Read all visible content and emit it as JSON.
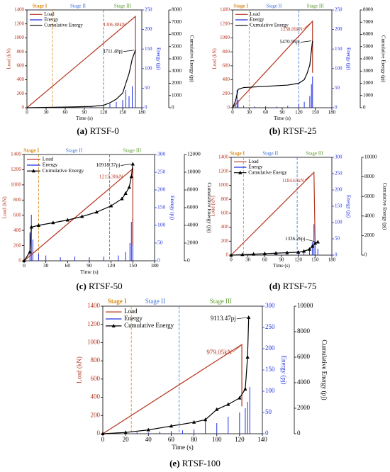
{
  "chart_data": [
    {
      "type": "line",
      "label": "(a)",
      "title": "RTSF-0",
      "xlabel": "Time (s)",
      "ylabel": "Load (kN)",
      "y2label": "Energy (pj)",
      "y3label": "Cumulative Energy (pj)",
      "xlim": [
        0,
        180
      ],
      "xticks": [
        0,
        30,
        60,
        90,
        120,
        150,
        180
      ],
      "ylim": [
        0,
        1400
      ],
      "yticks": [
        0,
        200,
        400,
        600,
        800,
        1000,
        1200,
        1400
      ],
      "y2lim": [
        0,
        250
      ],
      "y2ticks": [
        0,
        50,
        100,
        150,
        200,
        250
      ],
      "y3lim": [
        0,
        8000
      ],
      "y3ticks": [
        0,
        1000,
        2000,
        3000,
        4000,
        5000,
        6000,
        7000,
        8000
      ],
      "stages": [
        "Stage I",
        "Stage II",
        "Stage III"
      ],
      "stage_bounds": [
        40,
        120
      ],
      "stage_colors": [
        "#d98c1a",
        "#3a6fd8",
        "#5a9a2a"
      ],
      "markers": false,
      "peak_label": "1306.88kN",
      "cum_label": "4711.48pj",
      "series": [
        {
          "name": "Load",
          "color": "#b5351f",
          "x": [
            0,
            170,
            170
          ],
          "values": [
            0,
            1306.88,
            200
          ]
        },
        {
          "name": "Energy",
          "color": "#1f2fe0",
          "axis": "y2",
          "x": [
            20,
            40,
            60,
            80,
            100,
            120,
            130,
            140,
            150,
            155,
            160,
            165,
            170
          ],
          "values": [
            1,
            2,
            2,
            3,
            4,
            6,
            10,
            15,
            20,
            45,
            30,
            55,
            40
          ]
        },
        {
          "name": "Cumulative Energy",
          "color": "#000000",
          "axis": "y3",
          "x": [
            0,
            60,
            100,
            120,
            130,
            140,
            150,
            155,
            160,
            163,
            165,
            170
          ],
          "values": [
            0,
            50,
            100,
            200,
            400,
            700,
            1200,
            2000,
            2800,
            3500,
            4000,
            4711.48
          ]
        }
      ]
    },
    {
      "type": "line",
      "label": "(b)",
      "title": "RTSF-25",
      "xlabel": "Time (s)",
      "ylabel": "Load (kN)",
      "y2label": "Energy (pj)",
      "y3label": "Cumulative Energy (pj)",
      "xlim": [
        0,
        180
      ],
      "xticks": [
        0,
        30,
        60,
        90,
        120,
        150,
        180
      ],
      "ylim": [
        0,
        1400
      ],
      "yticks": [
        0,
        200,
        400,
        600,
        800,
        1000,
        1200,
        1400
      ],
      "y2lim": [
        0,
        250
      ],
      "y2ticks": [
        0,
        50,
        100,
        150,
        200,
        250
      ],
      "y3lim": [
        0,
        8000
      ],
      "y3ticks": [
        0,
        1000,
        2000,
        3000,
        4000,
        5000,
        6000,
        7000,
        8000
      ],
      "stages": [
        "Stage I",
        "Stage II",
        "Stage III"
      ],
      "stage_bounds": [
        30,
        120
      ],
      "stage_colors": [
        "#d98c1a",
        "#3a6fd8",
        "#5a9a2a"
      ],
      "markers": false,
      "peak_label": "1238.09kN",
      "cum_label": "5470.95pj",
      "series": [
        {
          "name": "Load",
          "color": "#b5351f",
          "x": [
            0,
            145,
            145
          ],
          "values": [
            0,
            1238.09,
            500
          ]
        },
        {
          "name": "Energy",
          "color": "#1f2fe0",
          "axis": "y2",
          "x": [
            5,
            8,
            10,
            20,
            40,
            60,
            80,
            100,
            120,
            130,
            140,
            143,
            145
          ],
          "values": [
            10,
            45,
            20,
            5,
            3,
            4,
            3,
            5,
            10,
            15,
            30,
            60,
            80
          ]
        },
        {
          "name": "Cumulative Energy",
          "color": "#000000",
          "axis": "y3",
          "x": [
            0,
            5,
            10,
            20,
            60,
            100,
            120,
            130,
            135,
            140,
            143,
            145
          ],
          "values": [
            0,
            500,
            1500,
            1650,
            1750,
            1850,
            2000,
            2300,
            2800,
            3500,
            4700,
            5470.95
          ]
        }
      ]
    },
    {
      "type": "line",
      "label": "(c)",
      "title": "RTSF-50",
      "xlabel": "Time (s)",
      "ylabel": "Load (kN)",
      "y2label": "Energy (pj)",
      "y3label": "Cumulative Energy (pj)",
      "xlim": [
        0,
        180
      ],
      "xticks": [
        0,
        30,
        60,
        90,
        120,
        150,
        180
      ],
      "ylim": [
        0,
        1400
      ],
      "yticks": [
        0,
        200,
        400,
        600,
        800,
        1000,
        1200,
        1400
      ],
      "y2lim": [
        0,
        300
      ],
      "y2ticks": [
        0,
        50,
        100,
        150,
        200,
        250,
        300
      ],
      "y3lim": [
        0,
        12000
      ],
      "y3ticks": [
        0,
        2000,
        4000,
        6000,
        8000,
        10000,
        12000
      ],
      "stages": [
        "Stage I",
        "Stage II",
        "Stage III"
      ],
      "stage_bounds": [
        20,
        118
      ],
      "stage_colors": [
        "#d98c1a",
        "#3a6fd8",
        "#5a9a2a"
      ],
      "markers": true,
      "peak_label": "1213.30kN",
      "cum_label": "10918.37pj",
      "series": [
        {
          "name": "Load",
          "color": "#b5351f",
          "x": [
            0,
            150,
            150
          ],
          "values": [
            0,
            1213.3,
            200
          ]
        },
        {
          "name": "Energy",
          "color": "#1f2fe0",
          "axis": "y2",
          "x": [
            8,
            10,
            12,
            20,
            30,
            50,
            70,
            90,
            110,
            130,
            140,
            146,
            148,
            150
          ],
          "values": [
            80,
            130,
            60,
            20,
            15,
            10,
            12,
            10,
            12,
            15,
            25,
            50,
            110,
            120
          ]
        },
        {
          "name": "Cumulative Energy",
          "color": "#000000",
          "axis": "y3",
          "x": [
            0,
            8,
            10,
            20,
            40,
            60,
            80,
            100,
            120,
            135,
            140,
            145,
            148,
            150
          ],
          "values": [
            0,
            1000,
            3800,
            4000,
            4300,
            4600,
            5000,
            5500,
            6200,
            7000,
            7600,
            8300,
            9500,
            10918.37
          ]
        }
      ]
    },
    {
      "type": "line",
      "label": "(d)",
      "title": "RTSF-75",
      "xlabel": "Time (s)",
      "ylabel": "Load (kN)",
      "y2label": "Energy (pj)",
      "y3label": "Cumulative Energy (pj)",
      "xlim": [
        0,
        180
      ],
      "xticks": [
        0,
        30,
        60,
        90,
        120,
        150,
        180
      ],
      "ylim": [
        0,
        1400
      ],
      "yticks": [
        0,
        200,
        400,
        600,
        800,
        1000,
        1200,
        1400
      ],
      "y2lim": [
        0,
        300
      ],
      "y2ticks": [
        0,
        50,
        100,
        150,
        200,
        250,
        300
      ],
      "y3lim": [
        0,
        10000
      ],
      "y3ticks": [
        0,
        2000,
        4000,
        6000,
        8000,
        10000
      ],
      "stages": [
        "Stage I",
        "Stage II",
        "Stage III"
      ],
      "stage_bounds": [
        22,
        118
      ],
      "stage_colors": [
        "#d98c1a",
        "#3a6fd8",
        "#5a9a2a"
      ],
      "markers": true,
      "peak_label": "1184.63kN",
      "cum_label": "1336.26pj",
      "series": [
        {
          "name": "Load",
          "color": "#b5351f",
          "x": [
            0,
            148,
            150
          ],
          "values": [
            0,
            1184.63,
            200
          ]
        },
        {
          "name": "Energy",
          "color": "#1f2fe0",
          "axis": "y2",
          "x": [
            20,
            40,
            60,
            80,
            100,
            120,
            130,
            140,
            145,
            148,
            150,
            155
          ],
          "values": [
            1,
            2,
            2,
            3,
            3,
            5,
            8,
            15,
            40,
            95,
            30,
            20
          ]
        },
        {
          "name": "Cumulative Energy",
          "color": "#000000",
          "axis": "y3",
          "x": [
            0,
            20,
            40,
            60,
            80,
            100,
            120,
            130,
            140,
            145,
            150,
            155
          ],
          "values": [
            0,
            50,
            100,
            150,
            200,
            250,
            300,
            400,
            600,
            900,
            1200,
            1336.26
          ]
        }
      ]
    },
    {
      "type": "line",
      "label": "(e)",
      "title": "RTSF-100",
      "xlabel": "Time (s)",
      "ylabel": "Load (kN)",
      "y2label": "Energy (pj)",
      "y3label": "Cumulative Energy (pj)",
      "xlim": [
        0,
        140
      ],
      "xticks": [
        0,
        20,
        40,
        60,
        80,
        100,
        120,
        140
      ],
      "ylim": [
        0,
        1400
      ],
      "yticks": [
        0,
        200,
        400,
        600,
        800,
        1000,
        1200,
        1400
      ],
      "y2lim": [
        0,
        300
      ],
      "y2ticks": [
        0,
        50,
        100,
        150,
        200,
        250,
        300
      ],
      "y3lim": [
        0,
        10000
      ],
      "y3ticks": [
        0,
        2000,
        4000,
        6000,
        8000,
        10000
      ],
      "stages": [
        "Stage I",
        "Stage II",
        "Stage III"
      ],
      "stage_bounds": [
        25,
        67
      ],
      "stage_colors": [
        "#d98c1a",
        "#3a6fd8",
        "#5a9a2a"
      ],
      "markers": true,
      "peak_label": "979.05kN",
      "cum_label": "9113.47pj",
      "series": [
        {
          "name": "Load",
          "color": "#b5351f",
          "x": [
            0,
            122,
            122
          ],
          "values": [
            0,
            979.05,
            300
          ]
        },
        {
          "name": "Energy",
          "color": "#1f2fe0",
          "axis": "y2",
          "x": [
            10,
            20,
            30,
            40,
            50,
            60,
            70,
            80,
            90,
            100,
            110,
            120,
            125,
            127,
            129
          ],
          "values": [
            2,
            3,
            4,
            3,
            5,
            6,
            8,
            10,
            30,
            25,
            40,
            50,
            60,
            75,
            110
          ]
        },
        {
          "name": "Cumulative Energy",
          "color": "#000000",
          "axis": "y3",
          "x": [
            0,
            20,
            40,
            60,
            80,
            90,
            100,
            110,
            120,
            125,
            127,
            128
          ],
          "values": [
            0,
            100,
            300,
            600,
            900,
            1100,
            1900,
            2300,
            2800,
            3500,
            6000,
            9113.47
          ]
        }
      ]
    }
  ]
}
